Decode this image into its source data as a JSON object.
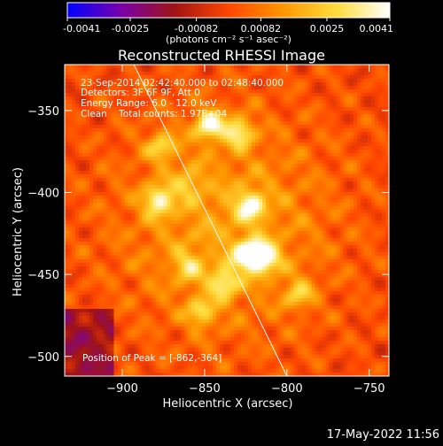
{
  "chart_data": {
    "type": "heatmap",
    "title": "Reconstructed RHESSI Image",
    "xlabel": "Heliocentric X (arcsec)",
    "ylabel": "Heliocentric Y (arcsec)",
    "xlim": [
      -935,
      -738
    ],
    "ylim": [
      -512,
      -322
    ],
    "xticks": [
      -900,
      -850,
      -800,
      -750
    ],
    "yticks": [
      -500,
      -450,
      -400,
      -350
    ],
    "colorbar": {
      "min": -0.0041,
      "max": 0.0041,
      "ticks": [
        "-0.0041",
        "-0.0025",
        "-0.00082",
        "0.00082",
        "0.0025",
        "0.0041"
      ],
      "units": "(photons cm⁻² s⁻¹ asec⁻²)",
      "colors": [
        "#0000ff",
        "#7800aa",
        "#a01414",
        "#ff4600",
        "#ff9600",
        "#ffdc3c",
        "#ffffff"
      ]
    },
    "info_lines": [
      "23-Sep-2014 02:42:40.000 to 02:48:40.000",
      "Detectors: 3F 6F 9F, Att 0",
      "Energy Range: 6.0 - 12.0 keV",
      "Clean    Total counts: 1.97E+04"
    ],
    "peak_text": "Position of Peak = [-862,-364]",
    "limb_line": [
      [
        -893,
        -322
      ],
      [
        -800,
        -512
      ]
    ],
    "sources": [
      {
        "x": -847,
        "y": -359,
        "amp": 0.0035
      },
      {
        "x": -829,
        "y": -363,
        "amp": 0.0028
      },
      {
        "x": -876,
        "y": -372,
        "amp": 0.0022
      },
      {
        "x": -878,
        "y": -405,
        "amp": 0.003
      },
      {
        "x": -822,
        "y": -408,
        "amp": 0.0029
      },
      {
        "x": -823,
        "y": -438,
        "amp": 0.004
      },
      {
        "x": -813,
        "y": -440,
        "amp": 0.003
      },
      {
        "x": -838,
        "y": -455,
        "amp": 0.0026
      },
      {
        "x": -860,
        "y": -445,
        "amp": 0.0018
      },
      {
        "x": -852,
        "y": -473,
        "amp": 0.0022
      },
      {
        "x": -793,
        "y": -462,
        "amp": 0.002
      },
      {
        "x": -860,
        "y": -395,
        "amp": 0.0015
      }
    ],
    "background_level": 0.0009
  },
  "footer": {
    "datetime": "17-May-2022 11:56"
  }
}
